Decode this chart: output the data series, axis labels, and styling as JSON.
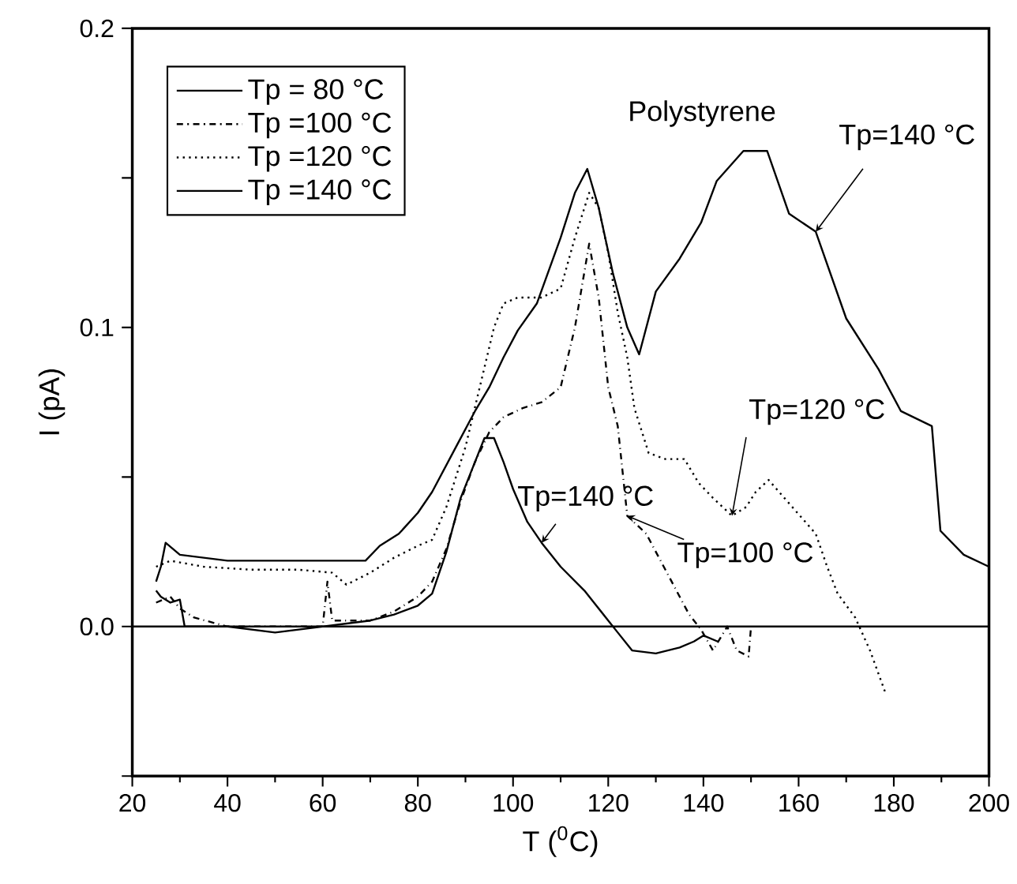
{
  "chart_data": {
    "type": "line",
    "title": "Polystyrene",
    "xlabel": "T ($^{0}$C)",
    "ylabel": "I (pA)",
    "xlim": [
      20,
      200
    ],
    "xticks": [
      20,
      40,
      60,
      80,
      100,
      120,
      140,
      160,
      180,
      200
    ],
    "ylim": [
      -0.05,
      0.2
    ],
    "yticks": [
      {
        "value": -0.05,
        "label": null
      },
      {
        "value": 0,
        "label": "0.0"
      },
      {
        "value": 0.05,
        "label": null
      },
      0.1,
      {
        "value": 0.15,
        "label": null
      },
      0.2
    ],
    "legend": "top left",
    "ref_lines": [
      {
        "axis": "y",
        "value": 0,
        "color": "#000000"
      }
    ],
    "annotations": [
      {
        "text": "Tp=140 °C",
        "x": 163.6,
        "y": 0.132
      },
      {
        "text": "Tp=120 °C",
        "x": 146,
        "y": 0.037
      },
      {
        "text": "Tp=100 °C",
        "x": 124,
        "y": 0.037
      },
      {
        "text": "Tp=140 °C",
        "x": 106,
        "y": 0.028
      }
    ],
    "series": [
      {
        "name": "Tp = 80 °C",
        "color": "#000000",
        "line_style": "solid",
        "x": [
          25,
          26,
          28,
          30,
          31,
          33,
          40,
          50,
          60,
          70,
          75,
          80,
          83,
          86,
          89,
          92,
          94,
          96,
          98,
          100,
          103,
          106,
          110,
          115,
          120,
          122,
          125,
          130,
          135,
          138,
          140,
          143
        ],
        "values": [
          0.012,
          0.01,
          0.008,
          0.009,
          0.0,
          0.0,
          0.0,
          -0.002,
          0.0,
          0.002,
          0.004,
          0.007,
          0.011,
          0.025,
          0.043,
          0.055,
          0.063,
          0.063,
          0.055,
          0.046,
          0.035,
          0.028,
          0.02,
          0.012,
          0.002,
          -0.002,
          -0.008,
          -0.009,
          -0.007,
          -0.005,
          -0.003,
          -0.005
        ]
      },
      {
        "name": "Tp =100 °C",
        "color": "#000000",
        "line_style": "dashdot",
        "x": [
          25,
          28,
          30,
          33,
          40,
          50,
          60,
          61,
          62,
          70,
          75,
          80,
          83,
          86,
          89,
          92,
          95,
          98,
          102,
          106,
          110,
          113,
          116,
          118,
          120,
          122,
          124,
          128,
          133,
          137,
          139.5,
          142,
          145,
          147,
          149.5,
          150
        ],
        "values": [
          0.008,
          0.01,
          0.006,
          0.003,
          0.0,
          0.0,
          0.0,
          0.015,
          0.002,
          0.002,
          0.005,
          0.01,
          0.015,
          0.026,
          0.042,
          0.055,
          0.065,
          0.07,
          0.073,
          0.075,
          0.08,
          0.1,
          0.128,
          0.11,
          0.08,
          0.067,
          0.037,
          0.031,
          0.016,
          0.004,
          -0.001,
          -0.008,
          0.0,
          -0.008,
          -0.01,
          0.0
        ]
      },
      {
        "name": "Tp =120 °C",
        "color": "#000000",
        "line_style": "dotted",
        "x": [
          25,
          28,
          35,
          45,
          55,
          62,
          65,
          70,
          75,
          80,
          83,
          86,
          90,
          93,
          96,
          98,
          101,
          106,
          110,
          113,
          116,
          118,
          120,
          122,
          124,
          125.5,
          128.5,
          132,
          136,
          139,
          142,
          146,
          149,
          151,
          153.7,
          157,
          160.3,
          163.6,
          166,
          168.2,
          171.9,
          175,
          178.2
        ],
        "values": [
          0.02,
          0.022,
          0.02,
          0.019,
          0.019,
          0.018,
          0.014,
          0.018,
          0.023,
          0.027,
          0.029,
          0.04,
          0.06,
          0.08,
          0.1,
          0.108,
          0.11,
          0.11,
          0.113,
          0.13,
          0.145,
          0.14,
          0.125,
          0.105,
          0.09,
          0.073,
          0.058,
          0.056,
          0.056,
          0.048,
          0.043,
          0.037,
          0.04,
          0.045,
          0.049,
          0.043,
          0.037,
          0.031,
          0.02,
          0.011,
          0.003,
          -0.008,
          -0.022
        ]
      },
      {
        "name": "Tp =140 °C",
        "color": "#000000",
        "line_style": "solid",
        "x": [
          25,
          26,
          27,
          30,
          40,
          50,
          60,
          69,
          72,
          76,
          80,
          83,
          88,
          92,
          95,
          98,
          101,
          105,
          110,
          113,
          115.6,
          118,
          121,
          124,
          126.5,
          130,
          135,
          139.5,
          142.8,
          148.4,
          153.4,
          158,
          163.6,
          170,
          176.8,
          181.5,
          188,
          189.8,
          194.7,
          200
        ],
        "values": [
          0.015,
          0.02,
          0.028,
          0.024,
          0.022,
          0.022,
          0.022,
          0.022,
          0.027,
          0.031,
          0.038,
          0.045,
          0.06,
          0.072,
          0.08,
          0.09,
          0.099,
          0.108,
          0.13,
          0.145,
          0.153,
          0.14,
          0.118,
          0.1,
          0.091,
          0.112,
          0.123,
          0.135,
          0.149,
          0.159,
          0.159,
          0.138,
          0.132,
          0.103,
          0.086,
          0.072,
          0.067,
          0.032,
          0.024,
          0.02
        ]
      }
    ]
  }
}
